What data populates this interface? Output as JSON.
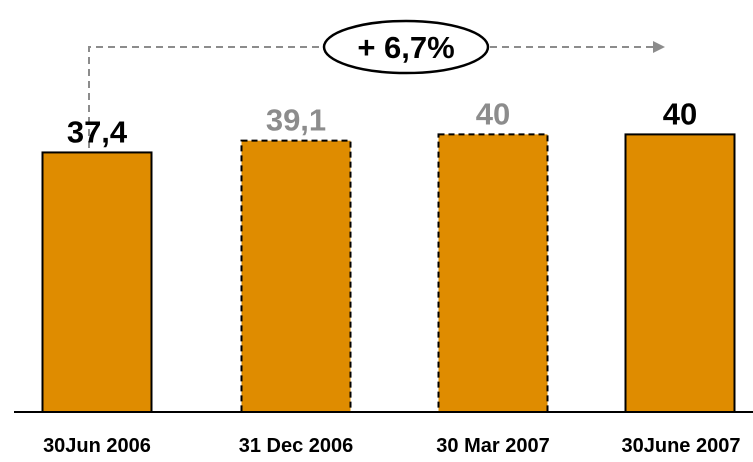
{
  "chart_data": {
    "type": "bar",
    "categories": [
      "30Jun 2006",
      "31 Dec 2006",
      "30 Mar 2007",
      "30June 2007"
    ],
    "value_labels": [
      "37,4",
      "39,1",
      "40",
      "40"
    ],
    "values": [
      37.4,
      39.1,
      40,
      40
    ],
    "bar_styles": [
      "actual",
      "estimate",
      "estimate",
      "actual"
    ],
    "annotation": "+ 6,7%",
    "grid": false,
    "legend": "none",
    "colors": {
      "bar_fill": "#DF8C00",
      "actual_label": "#000000",
      "estimate_label": "#8C8C8C",
      "arrow": "#8C8C8C",
      "axis": "#000000"
    }
  }
}
